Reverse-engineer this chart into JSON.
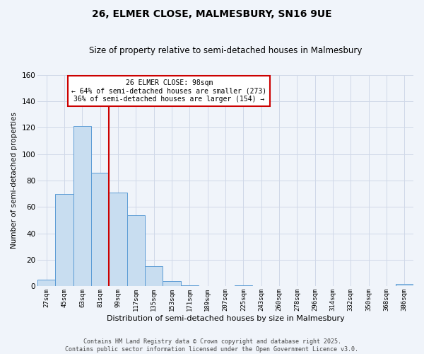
{
  "title": "26, ELMER CLOSE, MALMESBURY, SN16 9UE",
  "subtitle": "Size of property relative to semi-detached houses in Malmesbury",
  "xlabel": "Distribution of semi-detached houses by size in Malmesbury",
  "ylabel": "Number of semi-detached properties",
  "bin_labels": [
    "27sqm",
    "45sqm",
    "63sqm",
    "81sqm",
    "99sqm",
    "117sqm",
    "135sqm",
    "153sqm",
    "171sqm",
    "189sqm",
    "207sqm",
    "225sqm",
    "243sqm",
    "260sqm",
    "278sqm",
    "296sqm",
    "314sqm",
    "332sqm",
    "350sqm",
    "368sqm",
    "386sqm"
  ],
  "bar_heights": [
    5,
    70,
    121,
    86,
    71,
    54,
    15,
    4,
    1,
    0,
    0,
    1,
    0,
    0,
    0,
    0,
    0,
    0,
    0,
    0,
    2
  ],
  "bar_color": "#c8ddf0",
  "bar_edge_color": "#5b9bd5",
  "ylim": [
    0,
    160
  ],
  "yticks": [
    0,
    20,
    40,
    60,
    80,
    100,
    120,
    140,
    160
  ],
  "property_label": "26 ELMER CLOSE: 98sqm",
  "pct_smaller": 64,
  "count_smaller": 273,
  "pct_larger": 36,
  "count_larger": 154,
  "vline_color": "#cc0000",
  "grid_color": "#d0d8e8",
  "bg_color": "#f0f4fa",
  "annotation_box_color": "#ffffff",
  "annotation_box_edge_color": "#cc0000",
  "footer_line1": "Contains HM Land Registry data © Crown copyright and database right 2025.",
  "footer_line2": "Contains public sector information licensed under the Open Government Licence v3.0."
}
